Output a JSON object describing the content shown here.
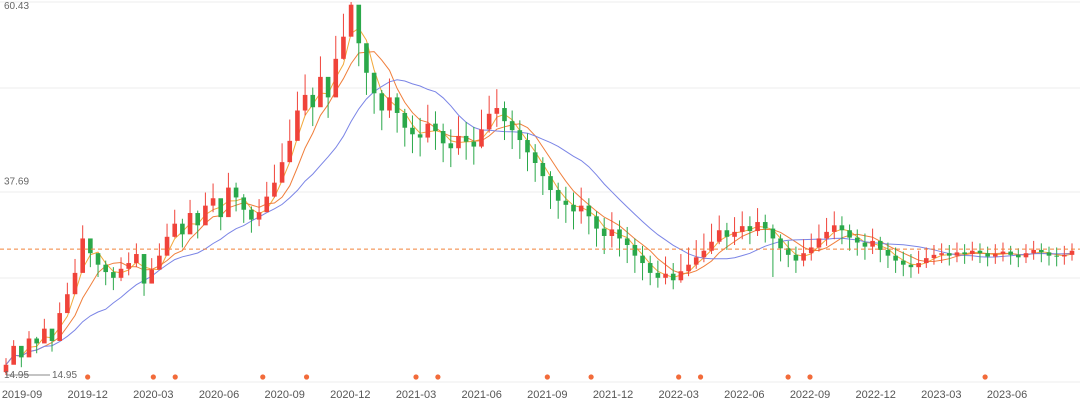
{
  "colors": {
    "up": "#f0433a",
    "down": "#2aa84a",
    "ma5": "#f2a93b",
    "ma10": "#f07f3c",
    "ma30": "#7b85e6",
    "ref_line": "#f2823a",
    "marker": "#f26b3a",
    "grid": "#eeeeee"
  },
  "chart_data": {
    "type": "candlestick",
    "y_tick_labels": [
      "60.43",
      "37.69",
      "14.95"
    ],
    "y_ticks": [
      60.43,
      37.69,
      14.95
    ],
    "ylim": [
      14.95,
      60.43
    ],
    "min_annotation": {
      "label": "14.95",
      "value": 14.95
    },
    "reference_line": 30.3,
    "x_tick_labels": [
      "2019-09",
      "2019-12",
      "2020-03",
      "2020-06",
      "2020-09",
      "2020-12",
      "2021-03",
      "2021-06",
      "2021-09",
      "2021-12",
      "2022-03",
      "2022-06",
      "2022-09",
      "2022-12",
      "2023-03",
      "2023-06"
    ],
    "grid": true,
    "series": [
      {
        "type": "candlestick",
        "closes": [
          16.2,
          18.5,
          17.1,
          19.4,
          18.8,
          20.6,
          19.1,
          22.5,
          24.8,
          27.4,
          31.6,
          29.8,
          28.4,
          27.5,
          26.8,
          27.9,
          28.6,
          29.7,
          26.1,
          27.8,
          29.5,
          31.8,
          33.4,
          32.1,
          34.7,
          33.2,
          35.6,
          36.5,
          34.2,
          37.8,
          36.6,
          35.1,
          33.9,
          34.8,
          36.7,
          38.4,
          40.9,
          43.5,
          47.2,
          49.1,
          47.6,
          51.3,
          48.8,
          53.5,
          56.2,
          60.1,
          55.4,
          51.8,
          49.3,
          47.2,
          48.8,
          46.9,
          45.1,
          44.3,
          43.9,
          45.6,
          44.7,
          43.2,
          42.6,
          44.1,
          43.4,
          42.8,
          44.9,
          46.8,
          47.5,
          45.9,
          44.8,
          43.6,
          42.1,
          40.8,
          39.2,
          37.5,
          36.2,
          35.7,
          34.9,
          35.6,
          34.3,
          32.8,
          31.9,
          32.7,
          31.6,
          30.8,
          29.5,
          28.6,
          27.4,
          26.8,
          27.3,
          26.5,
          27.6,
          28.4,
          29.3,
          30.1,
          31.2,
          32.6,
          31.8,
          32.4,
          33.1,
          32.5,
          33.6,
          32.8,
          31.6,
          30.4,
          29.6,
          28.9,
          29.8,
          30.5,
          31.6,
          32.4,
          33.2,
          32.6,
          31.7,
          31.1,
          30.6,
          31.3,
          30.2,
          29.5,
          28.9,
          28.4,
          28.1,
          28.6,
          29.2,
          29.6,
          29.8,
          29.5,
          29.9,
          29.7,
          30.1,
          29.8,
          29.4,
          29.7,
          30.0,
          29.6,
          29.3,
          29.8,
          30.2,
          29.9,
          29.5,
          29.4,
          29.6,
          30.1
        ],
        "highs": [
          17.0,
          19.2,
          18.0,
          20.3,
          19.6,
          21.8,
          20.5,
          23.8,
          26.2,
          29.1,
          33.2,
          31.5,
          29.8,
          28.9,
          28.1,
          29.3,
          29.9,
          31.0,
          28.0,
          29.2,
          31.0,
          33.4,
          35.1,
          34.0,
          36.3,
          35.0,
          37.2,
          38.3,
          36.1,
          39.6,
          38.4,
          37.0,
          35.5,
          36.4,
          38.5,
          40.6,
          43.2,
          46.1,
          49.5,
          51.6,
          50.0,
          53.8,
          51.2,
          56.3,
          59.0,
          60.43,
          58.3,
          54.6,
          51.8,
          49.7,
          51.1,
          49.3,
          47.4,
          46.6,
          46.3,
          47.9,
          47.1,
          45.6,
          44.9,
          46.5,
          45.8,
          45.2,
          47.3,
          49.0,
          49.8,
          48.3,
          47.2,
          46.0,
          44.4,
          43.1,
          41.5,
          39.8,
          38.4,
          37.9,
          37.2,
          37.8,
          36.5,
          34.9,
          34.1,
          34.8,
          33.8,
          33.0,
          31.6,
          30.7,
          29.5,
          28.9,
          29.4,
          28.6,
          29.7,
          30.5,
          31.4,
          32.2,
          33.4,
          34.4,
          33.5,
          34.2,
          34.9,
          34.3,
          35.3,
          34.5,
          33.3,
          32.1,
          31.3,
          30.6,
          31.5,
          32.2,
          33.3,
          34.1,
          34.9,
          34.3,
          33.3,
          32.7,
          32.2,
          32.8,
          31.8,
          31.1,
          30.5,
          30.0,
          29.7,
          30.1,
          30.5,
          30.8,
          31.0,
          30.8,
          31.1,
          30.9,
          31.2,
          31.0,
          30.6,
          30.9,
          31.1,
          30.7,
          30.4,
          30.9,
          31.3,
          31.0,
          30.6,
          30.5,
          30.7,
          31.0
        ],
        "lows": [
          14.95,
          16.8,
          15.9,
          17.9,
          17.6,
          18.9,
          17.8,
          20.8,
          23.2,
          25.6,
          29.4,
          28.1,
          26.9,
          25.9,
          25.3,
          26.4,
          27.1,
          28.1,
          24.6,
          26.1,
          27.8,
          30.1,
          31.7,
          30.5,
          32.9,
          31.6,
          33.8,
          34.8,
          32.6,
          36.1,
          34.9,
          33.5,
          32.3,
          33.1,
          34.9,
          36.6,
          39.0,
          41.4,
          44.8,
          46.6,
          45.3,
          48.8,
          46.3,
          50.8,
          53.4,
          56.8,
          52.6,
          49.1,
          46.8,
          44.8,
          46.3,
          44.5,
          42.8,
          42.0,
          41.6,
          43.3,
          42.4,
          40.9,
          40.3,
          41.8,
          41.2,
          40.6,
          42.6,
          44.5,
          45.2,
          43.6,
          42.5,
          41.3,
          39.8,
          38.5,
          36.9,
          35.2,
          34.0,
          33.5,
          32.7,
          33.4,
          32.1,
          30.6,
          29.7,
          30.5,
          29.4,
          28.6,
          27.4,
          26.5,
          25.9,
          25.6,
          26.0,
          25.4,
          26.2,
          27.0,
          27.9,
          28.7,
          29.7,
          30.9,
          30.2,
          30.8,
          31.5,
          30.9,
          31.9,
          31.1,
          26.9,
          28.8,
          28.1,
          27.4,
          28.2,
          28.9,
          30.0,
          30.7,
          31.5,
          30.9,
          30.1,
          29.5,
          29.0,
          29.7,
          28.7,
          28.0,
          27.4,
          27.0,
          26.8,
          27.3,
          28.0,
          28.4,
          28.6,
          28.3,
          28.7,
          28.5,
          28.9,
          28.6,
          28.2,
          28.5,
          28.8,
          28.4,
          28.1,
          28.6,
          29.0,
          28.7,
          28.3,
          28.2,
          28.4,
          28.9
        ]
      }
    ],
    "marker_dates": [
      "2019-12",
      "2020-03",
      "2020-04",
      "2020-08",
      "2020-10",
      "2021-03",
      "2021-04",
      "2021-09",
      "2021-11",
      "2022-03",
      "2022-04",
      "2022-08",
      "2022-09",
      "2023-05"
    ]
  }
}
